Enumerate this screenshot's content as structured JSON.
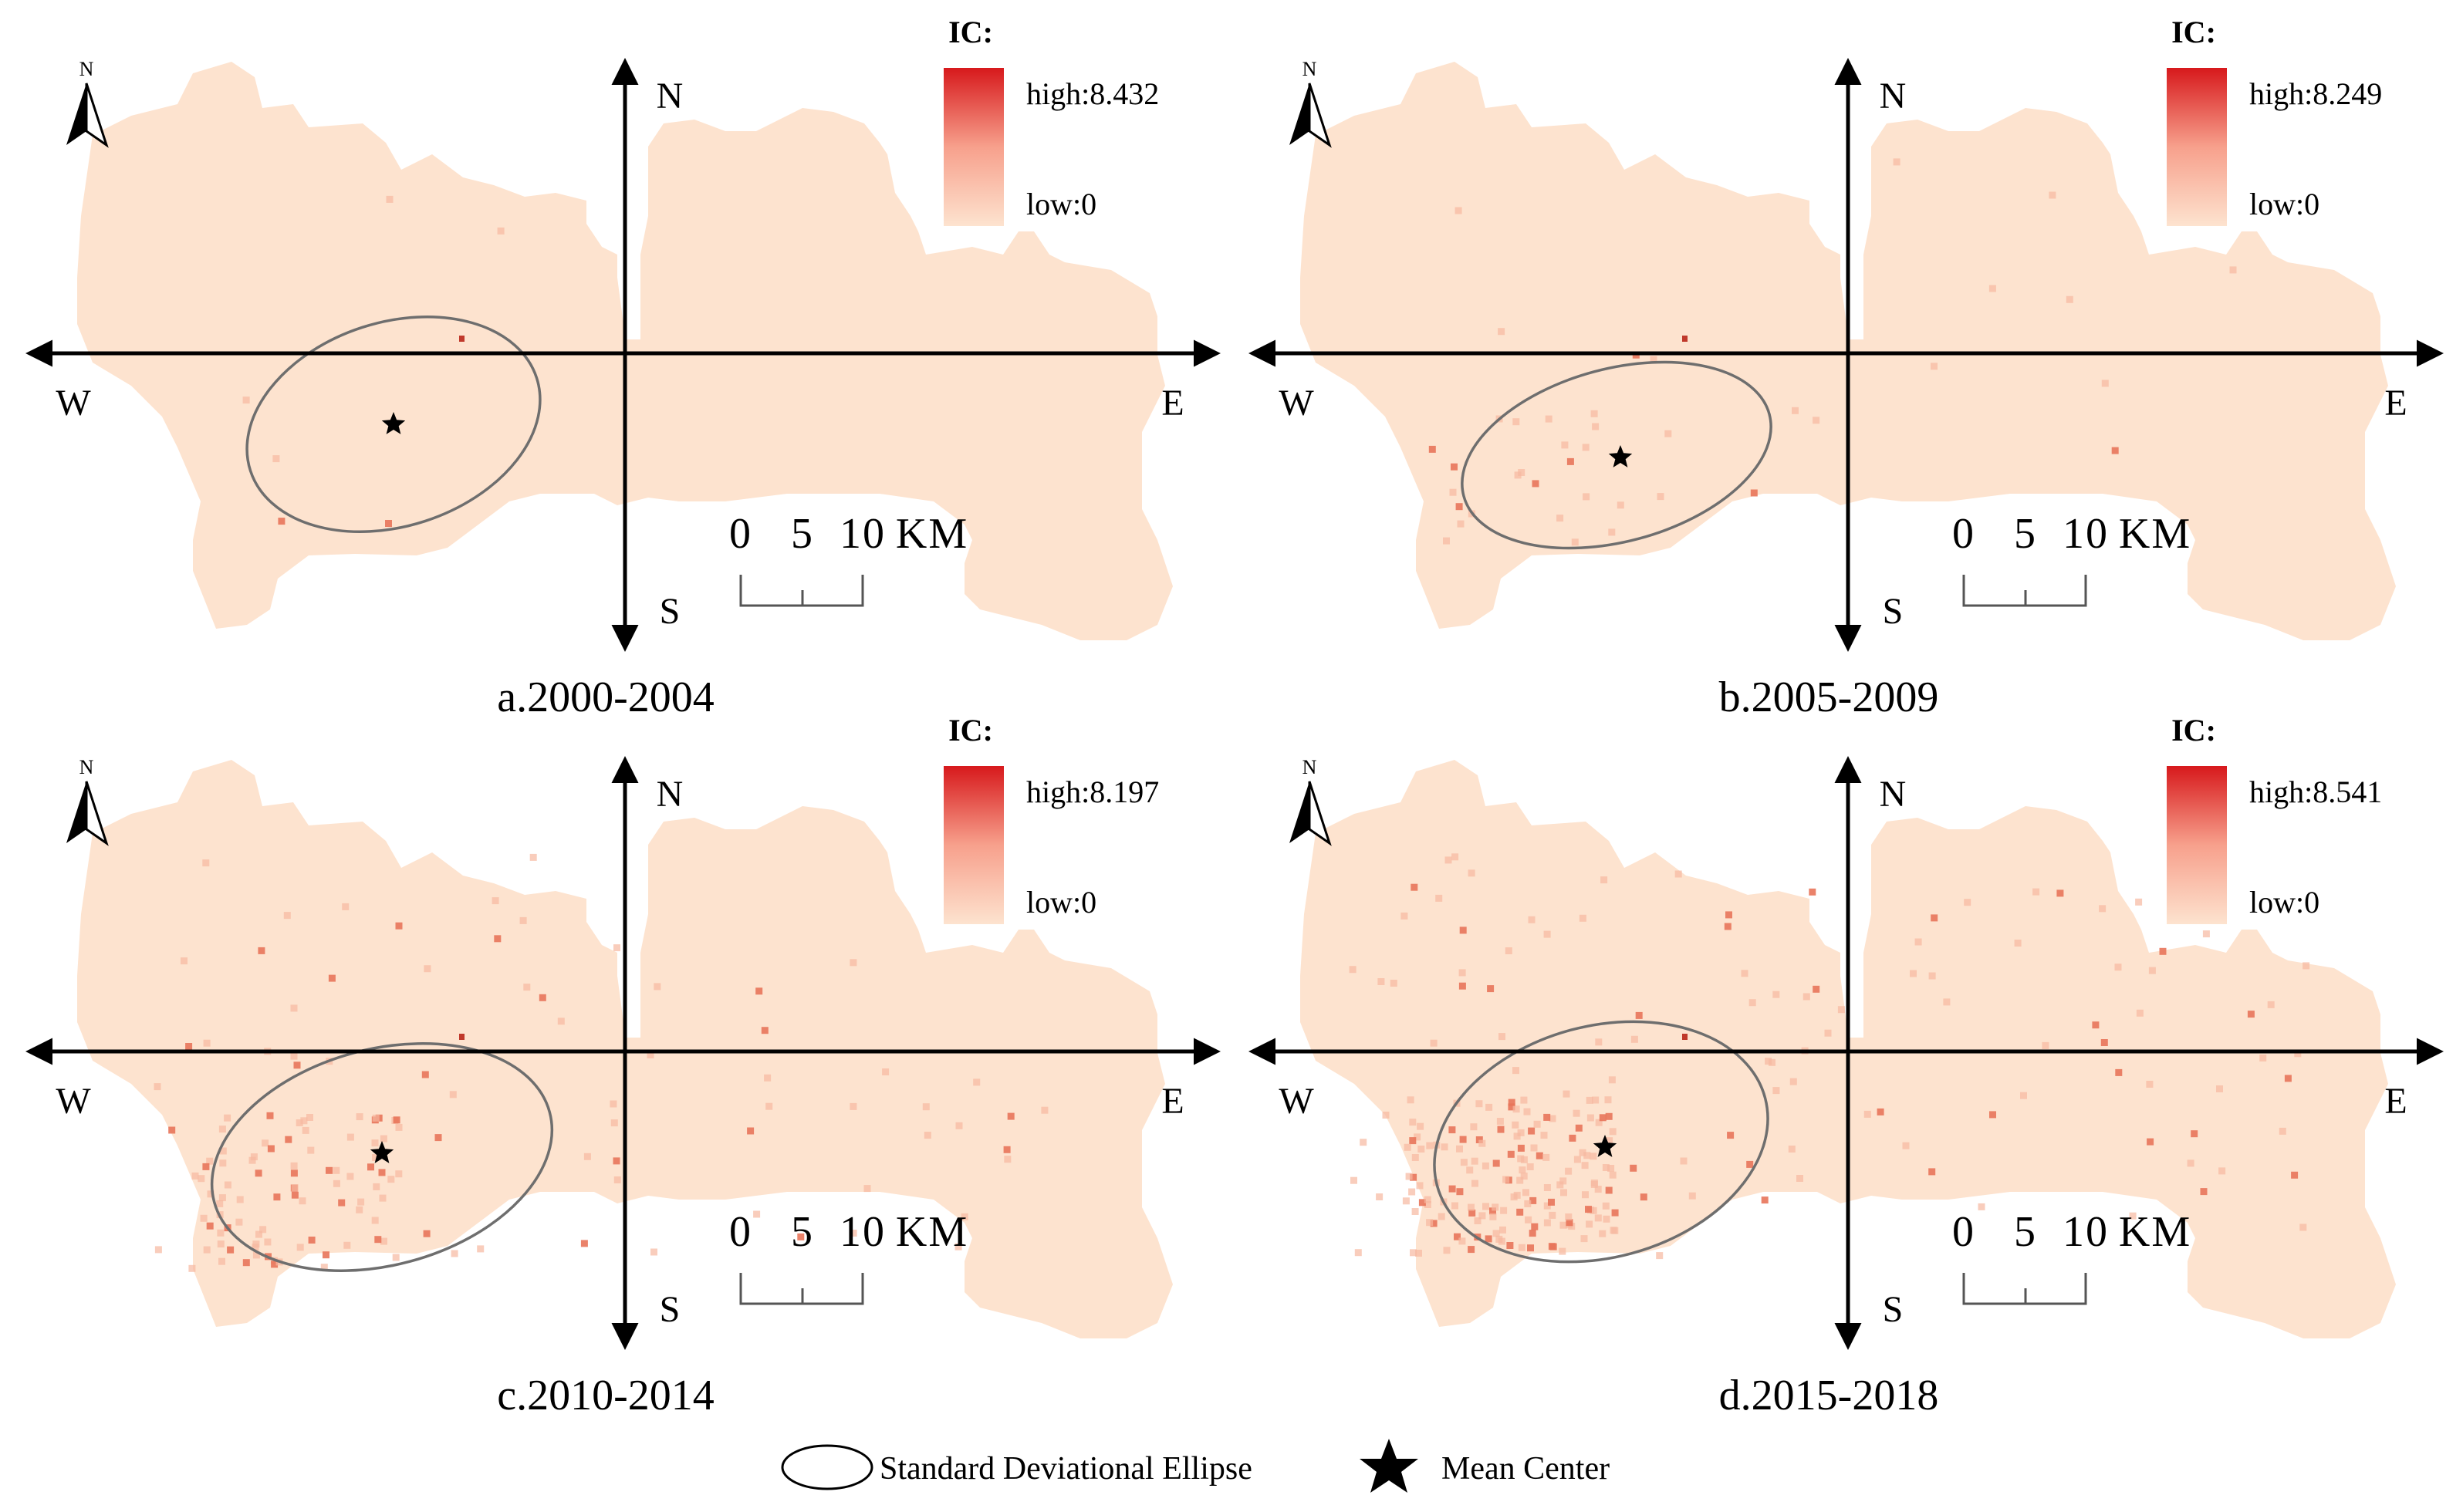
{
  "colors": {
    "land": "#fde3cf",
    "hot_low": "#f6b8a0",
    "hot_high": "#d7191c",
    "axis": "#000000",
    "ellipse": "#6e6e6e"
  },
  "legend_title": "IC:",
  "low_label": "low:0",
  "directions": {
    "north": "N",
    "south": "S",
    "west": "W",
    "east": "E"
  },
  "north_arrow_letter": "N",
  "scale": {
    "tick0": "0",
    "tick1": "5",
    "tick2": "10",
    "unit": "KM"
  },
  "panels": [
    {
      "caption": "a.2000-2004",
      "high_label": "high:8.432",
      "density": "sparse"
    },
    {
      "caption": "b.2005-2009",
      "high_label": "high:8.249",
      "density": "low"
    },
    {
      "caption": "c.2010-2014",
      "high_label": "high:8.197",
      "density": "medium"
    },
    {
      "caption": "d.2015-2018",
      "high_label": "high:8.541",
      "density": "high"
    }
  ],
  "bottom_legend": {
    "ellipse_label": "Standard Deviational Ellipse",
    "center_label": "Mean Center",
    "ellipse_icon": "ellipse-icon",
    "center_icon": "star-icon"
  }
}
